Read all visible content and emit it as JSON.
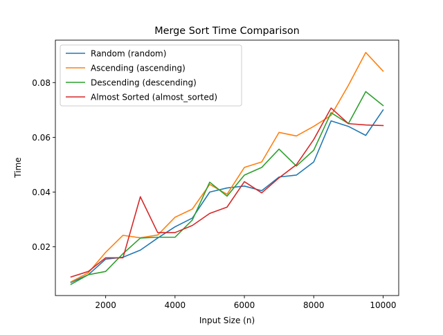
{
  "chart_data": {
    "type": "line",
    "title": "Merge Sort Time Comparison",
    "xlabel": "Input Size (n)",
    "ylabel": "Time",
    "xlim": [
      550,
      10450
    ],
    "ylim": [
      0.0022,
      0.0955
    ],
    "xticks": [
      2000,
      4000,
      6000,
      8000,
      10000
    ],
    "xtick_labels": [
      "2000",
      "4000",
      "6000",
      "8000",
      "10000"
    ],
    "yticks": [
      0.02,
      0.04,
      0.06,
      0.08
    ],
    "ytick_labels": [
      "0.02",
      "0.04",
      "0.06",
      "0.08"
    ],
    "grid": false,
    "legend_position": "top-left",
    "x": [
      1000,
      1500,
      2000,
      2500,
      3000,
      3500,
      4000,
      4500,
      5000,
      5500,
      6000,
      6500,
      7000,
      7500,
      8000,
      8500,
      9000,
      9500,
      10000
    ],
    "series": [
      {
        "name": "Random (random)",
        "color": "#1f77b4",
        "values": [
          0.007,
          0.0098,
          0.0155,
          0.0162,
          0.0188,
          0.0232,
          0.0273,
          0.0305,
          0.04,
          0.0415,
          0.0422,
          0.0405,
          0.0455,
          0.0462,
          0.051,
          0.066,
          0.064,
          0.0607,
          0.07
        ]
      },
      {
        "name": "Ascending (ascending)",
        "color": "#ff7f0e",
        "values": [
          0.0072,
          0.0105,
          0.018,
          0.0242,
          0.0233,
          0.0243,
          0.0308,
          0.0338,
          0.0428,
          0.0392,
          0.049,
          0.051,
          0.0618,
          0.0605,
          0.064,
          0.068,
          0.079,
          0.091,
          0.0842
        ]
      },
      {
        "name": "Descending (descending)",
        "color": "#2ca02c",
        "values": [
          0.0063,
          0.0098,
          0.011,
          0.0175,
          0.0232,
          0.0235,
          0.0235,
          0.0298,
          0.0436,
          0.0385,
          0.0462,
          0.049,
          0.0557,
          0.0495,
          0.0553,
          0.069,
          0.065,
          0.0767,
          0.0716
        ]
      },
      {
        "name": "Almost Sorted (almost_sorted)",
        "color": "#d62728",
        "values": [
          0.009,
          0.011,
          0.016,
          0.016,
          0.0383,
          0.0252,
          0.0252,
          0.0278,
          0.0322,
          0.0345,
          0.0438,
          0.0397,
          0.0452,
          0.05,
          0.0592,
          0.0707,
          0.065,
          0.0645,
          0.0643
        ]
      }
    ]
  }
}
